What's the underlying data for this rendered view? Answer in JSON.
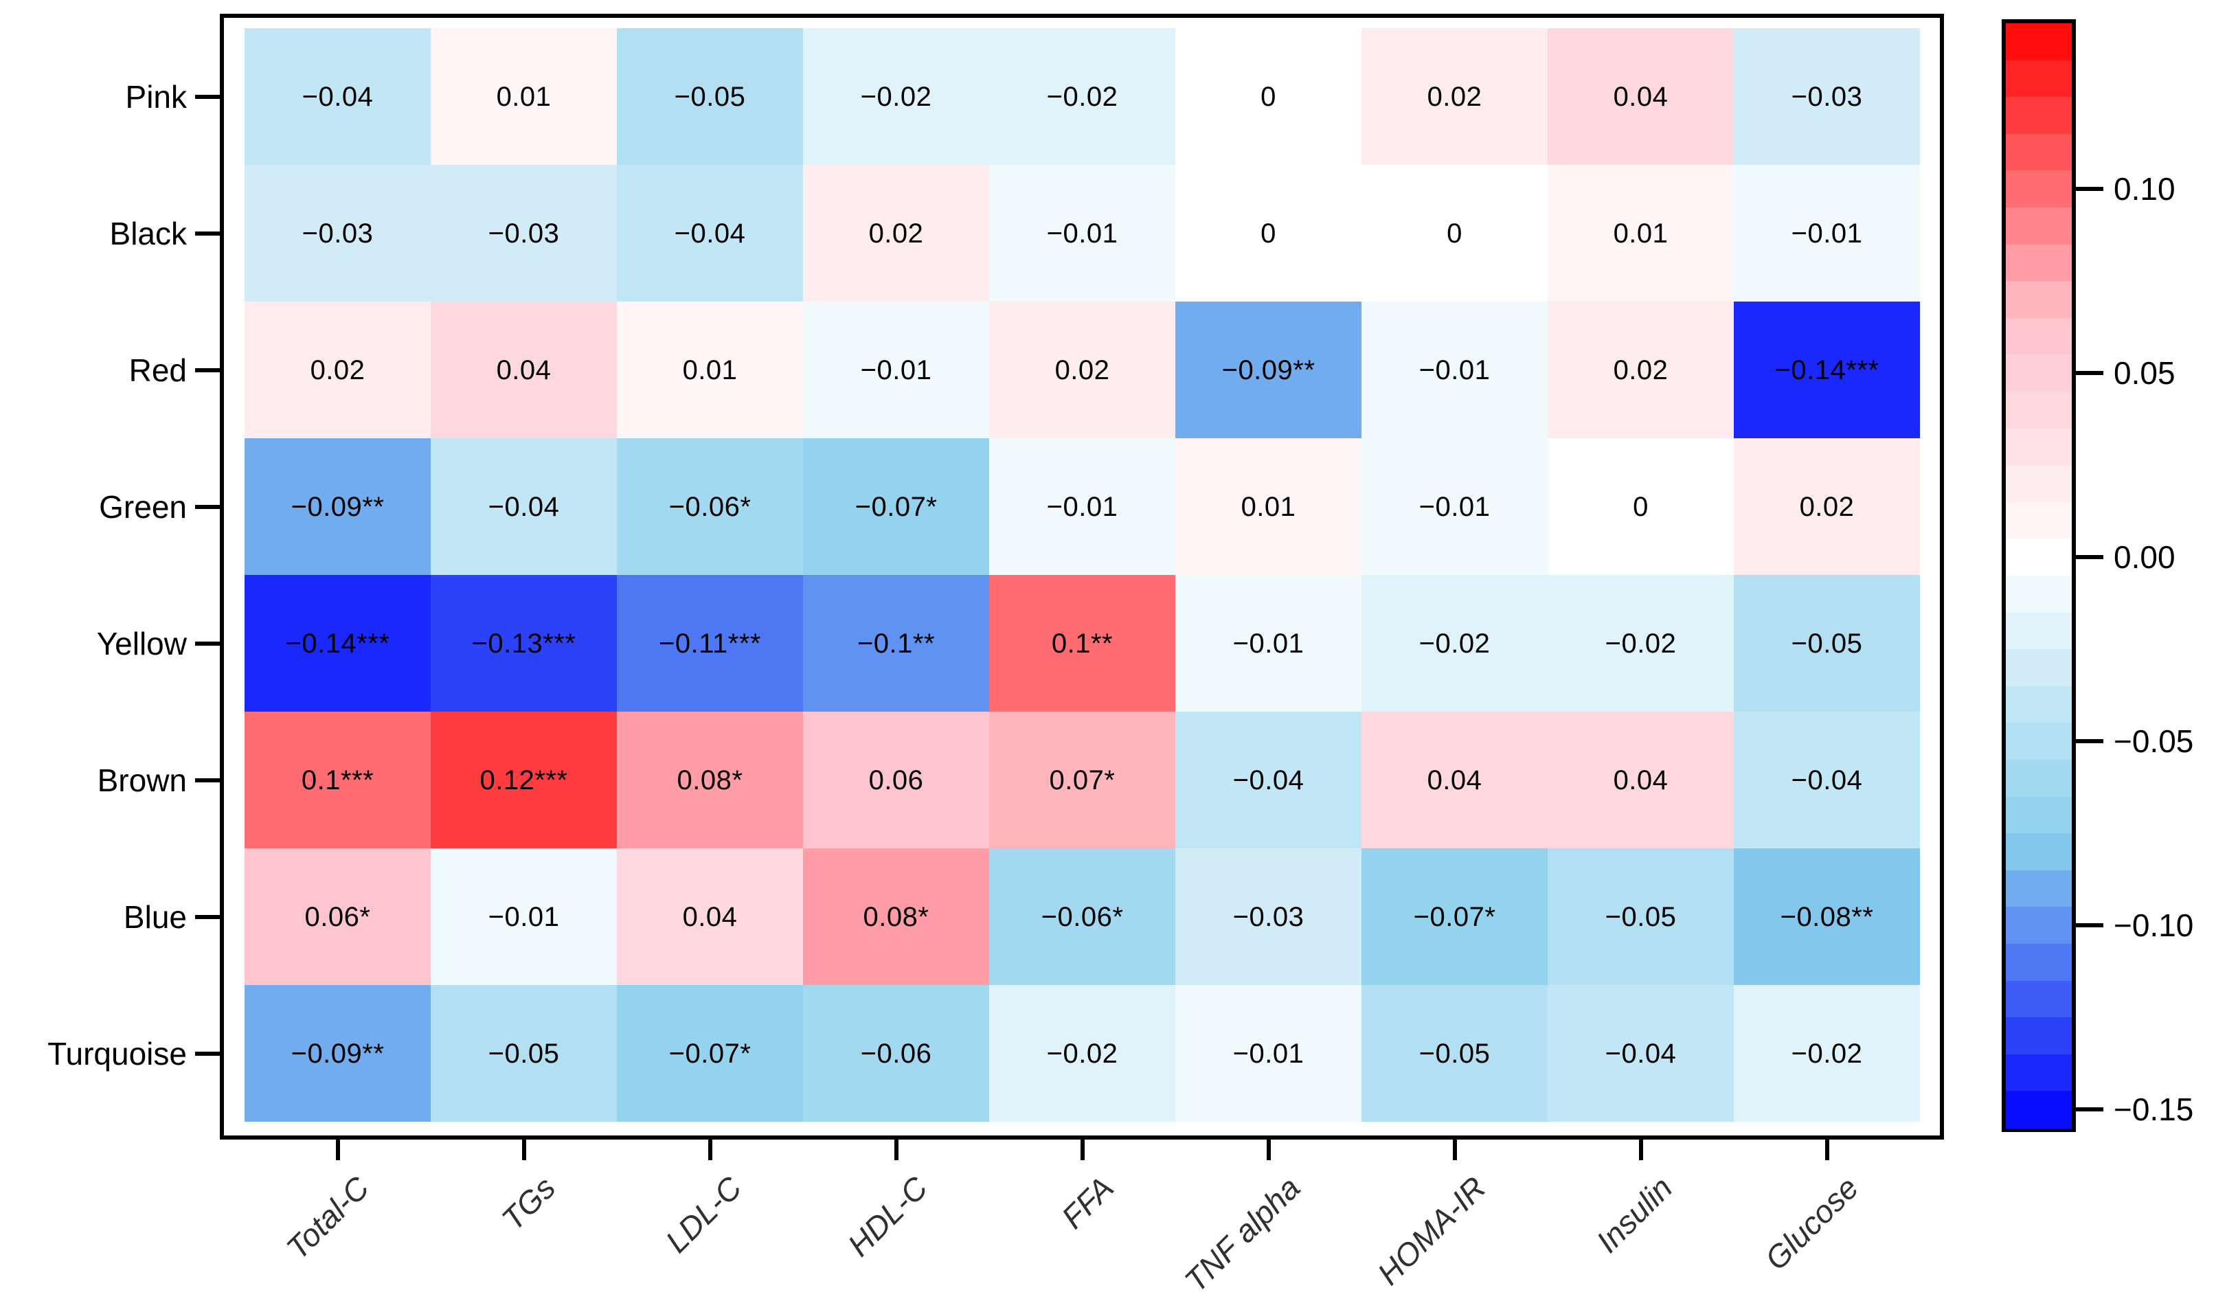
{
  "chart_data": {
    "type": "heatmap",
    "title": "",
    "rows": [
      "Pink",
      "Black",
      "Red",
      "Green",
      "Yellow",
      "Brown",
      "Blue",
      "Turquoise"
    ],
    "columns": [
      "Total-C",
      "TGs",
      "LDL-C",
      "HDL-C",
      "FFA",
      "TNF alpha",
      "HOMA-IR",
      "Insulin",
      "Glucose"
    ],
    "values": [
      [
        -0.04,
        0.01,
        -0.05,
        -0.02,
        -0.02,
        0,
        0.02,
        0.04,
        -0.03
      ],
      [
        -0.03,
        -0.03,
        -0.04,
        0.02,
        -0.01,
        0,
        0,
        0.01,
        -0.01
      ],
      [
        0.02,
        0.04,
        0.01,
        -0.01,
        0.02,
        -0.09,
        -0.01,
        0.02,
        -0.14
      ],
      [
        -0.09,
        -0.04,
        -0.06,
        -0.07,
        -0.01,
        0.01,
        -0.01,
        0,
        0.02
      ],
      [
        -0.14,
        -0.13,
        -0.11,
        -0.1,
        0.1,
        -0.01,
        -0.02,
        -0.02,
        -0.05
      ],
      [
        0.1,
        0.12,
        0.08,
        0.06,
        0.07,
        -0.04,
        0.04,
        0.04,
        -0.04
      ],
      [
        0.06,
        -0.01,
        0.04,
        0.08,
        -0.06,
        -0.03,
        -0.07,
        -0.05,
        -0.08
      ],
      [
        -0.09,
        -0.05,
        -0.07,
        -0.06,
        -0.02,
        -0.01,
        -0.05,
        -0.04,
        -0.02
      ]
    ],
    "labels": [
      [
        "−0.04",
        "0.01",
        "−0.05",
        "−0.02",
        "−0.02",
        "0",
        "0.02",
        "0.04",
        "−0.03"
      ],
      [
        "−0.03",
        "−0.03",
        "−0.04",
        "0.02",
        "−0.01",
        "0",
        "0",
        "0.01",
        "−0.01"
      ],
      [
        "0.02",
        "0.04",
        "0.01",
        "−0.01",
        "0.02",
        "−0.09**",
        "−0.01",
        "0.02",
        "−0.14***"
      ],
      [
        "−0.09**",
        "−0.04",
        "−0.06*",
        "−0.07*",
        "−0.01",
        "0.01",
        "−0.01",
        "0",
        "0.02"
      ],
      [
        "−0.14***",
        "−0.13***",
        "−0.11***",
        "−0.1**",
        "0.1**",
        "−0.01",
        "−0.02",
        "−0.02",
        "−0.05"
      ],
      [
        "0.1***",
        "0.12***",
        "0.08*",
        "0.06",
        "0.07*",
        "−0.04",
        "0.04",
        "0.04",
        "−0.04"
      ],
      [
        "0.06*",
        "−0.01",
        "0.04",
        "0.08*",
        "−0.06*",
        "−0.03",
        "−0.07*",
        "−0.05",
        "−0.08**"
      ],
      [
        "−0.09**",
        "−0.05",
        "−0.07*",
        "−0.06",
        "−0.02",
        "−0.01",
        "−0.05",
        "−0.04",
        "−0.02"
      ]
    ],
    "colorbar": {
      "ticks": [
        {
          "label": "0.10",
          "value": 0.1
        },
        {
          "label": "0.05",
          "value": 0.05
        },
        {
          "label": "0.00",
          "value": 0.0
        },
        {
          "label": "−0.05",
          "value": -0.05
        },
        {
          "label": "−0.10",
          "value": -0.1
        },
        {
          "label": "−0.15",
          "value": -0.15
        }
      ],
      "domain_min": -0.155,
      "domain_max": 0.145,
      "bands": 30
    },
    "palette": {
      "stops": [
        {
          "value": -0.155,
          "color": "#0000FF"
        },
        {
          "value": -0.0775,
          "color": "#87CEEB"
        },
        {
          "value": 0,
          "color": "#FFFFFF"
        },
        {
          "value": 0.065,
          "color": "#FFC0CB"
        },
        {
          "value": 0.145,
          "color": "#FF0000"
        }
      ]
    },
    "layout_hints": {
      "legend_position": "right",
      "grid": "off",
      "x_tick_rotation": 45
    }
  }
}
